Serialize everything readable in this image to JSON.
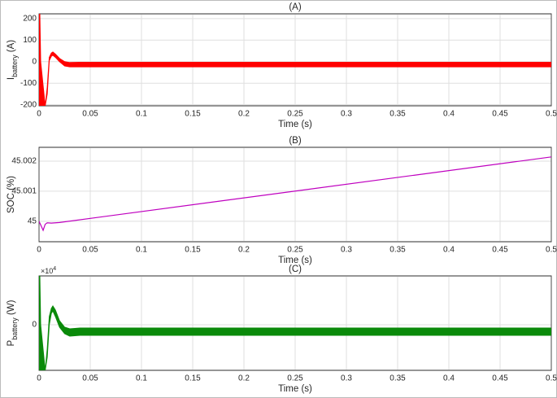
{
  "chart_data": [
    {
      "type": "band",
      "title": "(A)",
      "xlabel": "Time (s)",
      "ylabel": {
        "main": "I",
        "sub": "battery",
        "unit": "(A)"
      },
      "color": "#ff0000",
      "x": [
        0,
        0.0008,
        0.0016,
        0.006,
        0.008,
        0.01,
        0.012,
        0.0135,
        0.016,
        0.02,
        0.025,
        0.03,
        0.04,
        0.5
      ],
      "upper": [
        222,
        222,
        0,
        -205,
        -120,
        20,
        40,
        45,
        35,
        15,
        0,
        -4,
        -3,
        -3
      ],
      "lower": [
        -205,
        -205,
        -205,
        -205,
        -150,
        5,
        25,
        30,
        20,
        0,
        -20,
        -24,
        -24,
        -24
      ],
      "xlim": [
        0,
        0.5
      ],
      "xticks": [
        0,
        0.05,
        0.1,
        0.15,
        0.2,
        0.25,
        0.3,
        0.35,
        0.4,
        0.45,
        0.5
      ],
      "ylim": [
        -205,
        222
      ],
      "yticks": [
        -200,
        -100,
        0,
        100,
        200
      ],
      "grid": true
    },
    {
      "type": "line",
      "title": "(B)",
      "xlabel": "Time (s)",
      "ylabel": "SOC (%)",
      "color": "#bf00bf",
      "x": [
        0,
        0.002,
        0.004,
        0.006,
        0.008,
        0.012,
        0.02,
        0.5
      ],
      "values": [
        45,
        44.99985,
        44.9997,
        44.9999,
        44.99995,
        44.99994,
        44.99996,
        45.00214
      ],
      "xlim": [
        0,
        0.5
      ],
      "xticks": [
        0,
        0.05,
        0.1,
        0.15,
        0.2,
        0.25,
        0.3,
        0.35,
        0.4,
        0.45,
        0.5
      ],
      "ylim": [
        44.99932,
        45.00246
      ],
      "yticks": [
        45,
        45.001,
        45.002
      ],
      "grid": true
    },
    {
      "type": "band",
      "title": "(C)",
      "xlabel": "Time (s)",
      "ylabel": {
        "main": "P",
        "sub": "battery",
        "unit": "(W)"
      },
      "exponent": {
        "base": "×10",
        "power": "4"
      },
      "color": "#0a8a0a",
      "x": [
        0,
        0.0008,
        0.0016,
        0.006,
        0.008,
        0.01,
        0.012,
        0.0135,
        0.016,
        0.02,
        0.025,
        0.03,
        0.04,
        0.5
      ],
      "upper": [
        60000,
        60000,
        0,
        -56000,
        -30000,
        10000,
        20000,
        23000,
        18000,
        5000,
        -3000,
        -5000,
        -4000,
        -4000
      ],
      "lower": [
        -56000,
        -56000,
        -56000,
        -56000,
        -40000,
        0,
        14000,
        17000,
        10000,
        -3000,
        -11000,
        -14000,
        -13000,
        -13000
      ],
      "xlim": [
        0,
        0.5
      ],
      "xticks": [
        0,
        0.05,
        0.1,
        0.15,
        0.2,
        0.25,
        0.3,
        0.35,
        0.4,
        0.45,
        0.5
      ],
      "ylim": [
        -56000,
        60000
      ],
      "yticks": [
        0
      ],
      "grid": true
    }
  ]
}
